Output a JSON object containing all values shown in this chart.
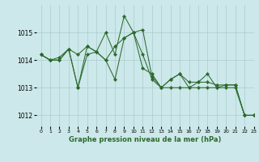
{
  "title": "Graphe pression niveau de la mer (hPa)",
  "background_color": "#cce8ea",
  "grid_color": "#aacccc",
  "line_color": "#2d6a2d",
  "marker_color": "#2d6a2d",
  "xlim": [
    -0.5,
    23
  ],
  "ylim": [
    1011.6,
    1016.0
  ],
  "yticks": [
    1012,
    1013,
    1014,
    1015
  ],
  "xticks": [
    0,
    1,
    2,
    3,
    4,
    5,
    6,
    7,
    8,
    9,
    10,
    11,
    12,
    13,
    14,
    15,
    16,
    17,
    18,
    19,
    20,
    21,
    22,
    23
  ],
  "series": [
    [
      1014.2,
      1014.0,
      1014.1,
      1014.4,
      1014.2,
      1014.5,
      1014.3,
      1015.0,
      1014.2,
      1015.6,
      1015.0,
      1015.1,
      1013.4,
      1013.0,
      1013.3,
      1013.5,
      1013.0,
      1013.2,
      1013.5,
      1013.0,
      1013.1,
      1013.1,
      1012.0,
      1012.0
    ],
    [
      1014.2,
      1014.0,
      1014.0,
      1014.4,
      1013.0,
      1014.2,
      1014.3,
      1014.0,
      1013.3,
      1014.8,
      1015.0,
      1013.7,
      1013.5,
      1013.0,
      1013.0,
      1013.0,
      1013.0,
      1013.0,
      1013.0,
      1013.0,
      1013.0,
      1013.0,
      1012.0,
      1012.0
    ],
    [
      1014.2,
      1014.0,
      1014.0,
      1014.4,
      1013.0,
      1014.5,
      1014.3,
      1014.0,
      1014.5,
      1014.8,
      1015.0,
      1014.2,
      1013.3,
      1013.0,
      1013.3,
      1013.5,
      1013.2,
      1013.2,
      1013.2,
      1013.1,
      1013.1,
      1013.1,
      1012.0,
      1012.0
    ]
  ]
}
